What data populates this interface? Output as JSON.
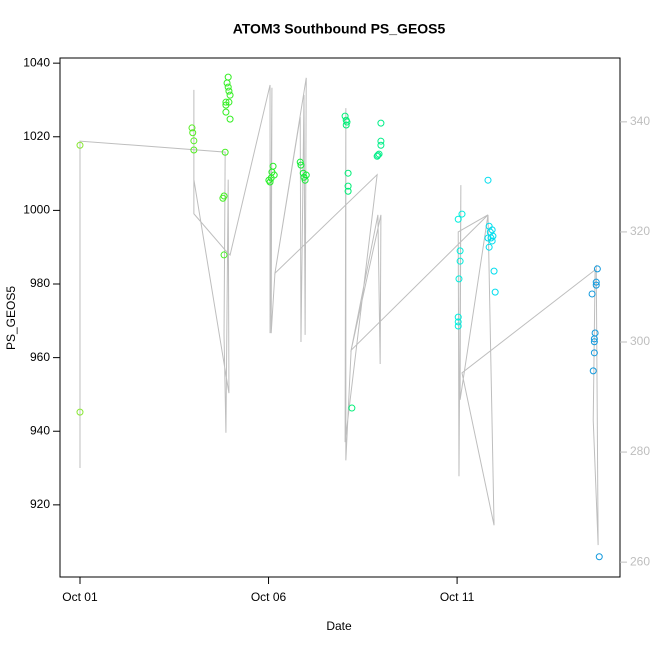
{
  "chart_data": {
    "type": "scatter",
    "title": "ATOM3 Southbound PS_GEOS5",
    "x_label": "Date",
    "y_label": "PS_GEOS5",
    "xlim": [
      -0.53,
      14.32
    ],
    "xticks": [
      {
        "value": 0,
        "label": "Oct 01"
      },
      {
        "value": 5,
        "label": "Oct 06"
      },
      {
        "value": 10,
        "label": "Oct 11"
      }
    ],
    "ylim": [
      900.4,
      1041.4
    ],
    "yticks": [
      920,
      940,
      960,
      980,
      1000,
      1020,
      1040
    ],
    "y2lim": [
      257.3,
      351.6
    ],
    "y2ticks": [
      260,
      280,
      300,
      320,
      340
    ],
    "y2color": "#bebebe",
    "series": [
      {
        "color": "#88e833",
        "x": [
          0,
          0
        ],
        "values": [
          1017.7,
          945.2
        ]
      },
      {
        "color": "#55ee22",
        "x": [
          2.97,
          2.99,
          3.02,
          3.02
        ],
        "values": [
          1022.4,
          1021.1,
          1018.9,
          1016.4
        ]
      },
      {
        "color": "#44ee22",
        "x": [
          3.85,
          3.82,
          3.79,
          3.82
        ],
        "values": [
          1015.8,
          1003.9,
          1003.3,
          987.9
        ]
      },
      {
        "color": "#33ee22",
        "x": [
          3.93,
          3.9,
          3.93,
          3.95,
          3.98,
          3.87,
          3.87,
          3.95,
          3.87,
          3.98
        ],
        "values": [
          1036.2,
          1034.6,
          1033.5,
          1032.4,
          1031.3,
          1029.4,
          1028.6,
          1029.4,
          1026.7,
          1024.8
        ]
      },
      {
        "color": "#22ee22",
        "x": [
          5.04,
          5.07,
          5.09,
          5.12,
          5.15,
          5.01
        ],
        "values": [
          1007.7,
          1008.8,
          1010.4,
          1012.0,
          1009.6,
          1008.2
        ]
      },
      {
        "color": "#11ee33",
        "x": [
          5.84,
          5.86,
          5.92,
          5.94,
          5.97,
          6.0
        ],
        "values": [
          1013.1,
          1012.3,
          1010.1,
          1009.0,
          1008.2,
          1009.6
        ]
      },
      {
        "color": "#00ee77",
        "x": [
          7.03,
          7.06,
          7.06,
          7.08,
          7.11,
          7.11,
          7.11,
          7.21
        ],
        "values": [
          1025.6,
          1024.5,
          1023.2,
          1024.0,
          1010.1,
          1006.6,
          1005.2,
          946.3
        ]
      },
      {
        "color": "#00ee88",
        "x": [
          7.88,
          7.9,
          7.93,
          7.98,
          7.98,
          7.98
        ],
        "values": [
          1014.7,
          1015.0,
          1015.3,
          1018.8,
          1017.7,
          1023.7
        ]
      },
      {
        "color": "#00eedd",
        "x": [
          10.03,
          10.13,
          10.08,
          10.08,
          10.05,
          10.03,
          10.03,
          10.03
        ],
        "values": [
          997.6,
          999.0,
          989.0,
          986.2,
          981.4,
          971.0,
          969.7,
          968.6
        ]
      },
      {
        "color": "#00ddee",
        "x": [
          10.82,
          10.85,
          10.88,
          10.9,
          10.93,
          10.95,
          10.82,
          10.85,
          10.93,
          10.98,
          11.01
        ],
        "values": [
          1008.2,
          995.7,
          994.1,
          992.5,
          991.7,
          993.0,
          992.5,
          990.0,
          994.7,
          983.5,
          977.8
        ]
      },
      {
        "color": "#1199dd",
        "x": [
          13.58,
          13.64,
          13.66,
          13.64,
          13.64,
          13.69,
          13.72,
          13.69,
          13.61,
          13.77
        ],
        "values": [
          977.3,
          965.1,
          966.7,
          964.3,
          961.3,
          980.5,
          984.1,
          979.7,
          956.4,
          905.9
        ]
      },
      {
        "type": "line",
        "axis": "y2",
        "color": "#bebebe",
        "x": [
          0,
          0,
          3.85,
          3.82,
          3.87,
          3.93,
          3.95,
          3.02,
          3.02,
          3.02,
          3.85,
          3.98,
          5.04,
          5.04,
          5.09,
          5.07,
          5.17,
          5.84,
          5.86,
          5.94,
          5.97,
          6.0,
          5.17,
          7.88,
          7.03,
          7.05,
          7.05,
          7.19,
          7.9,
          7.96,
          7.98,
          7.19,
          10.82,
          10.03,
          10.05,
          10.1,
          10.08,
          10.82,
          10.98,
          10.13,
          13.66,
          13.61,
          13.74,
          13.69
        ],
        "values": [
          277.1,
          336.5,
          334.5,
          301.3,
          283.5,
          329.5,
          290.7,
          329.5,
          345.8,
          323.3,
          316.7,
          315.8,
          346.7,
          301.6,
          346.2,
          301.6,
          312.5,
          340.9,
          300.0,
          344.9,
          301.3,
          348.0,
          312.5,
          330.4,
          281.8,
          342.5,
          278.5,
          298.5,
          323.1,
          296.0,
          323.1,
          298.5,
          323.1,
          320.0,
          275.6,
          328.5,
          289.5,
          323.1,
          266.7,
          294.4,
          313.1,
          285.8,
          263.1,
          314.0
        ]
      }
    ]
  }
}
